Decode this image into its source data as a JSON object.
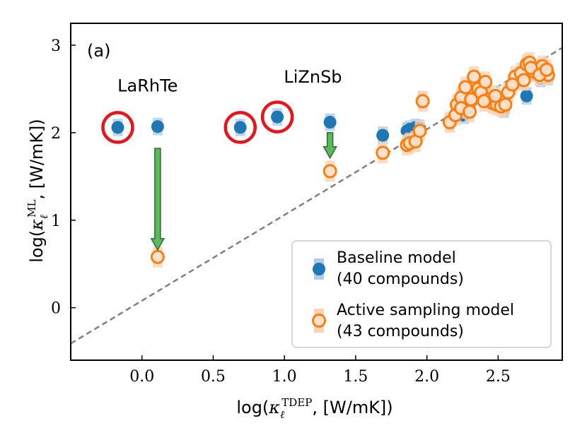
{
  "chart_data": {
    "type": "scatter",
    "panel_label": "(a)",
    "xlabel": {
      "prefix": "log(",
      "symbol": "κ",
      "sub": "ℓ",
      "sup": "TDEP",
      "suffix": ", [W/mK])"
    },
    "ylabel": {
      "prefix": "log(",
      "symbol": "κ",
      "sub": "ℓ",
      "sup": "ML",
      "suffix": ", [W/mK])"
    },
    "xlim": [
      -0.5,
      2.95
    ],
    "ylim": [
      -0.6,
      3.25
    ],
    "xticks": [
      0.0,
      0.5,
      1.0,
      1.5,
      2.0,
      2.5
    ],
    "xtick_labels": [
      "0.0",
      "0.5",
      "1.0",
      "1.5",
      "2.0",
      "2.5"
    ],
    "yticks": [
      0,
      1,
      2,
      3
    ],
    "ytick_labels": [
      "0",
      "1",
      "2",
      "3"
    ],
    "reference_line": {
      "style": "dashed",
      "color": "#808080",
      "from": [
        -0.5,
        -0.41
      ],
      "to": [
        2.95,
        2.97
      ]
    },
    "colors": {
      "baseline": "#1f77b4",
      "baseline_err": "#aecde6",
      "active": "#ff7f0e",
      "active_fill": "#fde2cf",
      "active_err": "#fbd3b5",
      "circle": "#e8141c",
      "arrow_fill": "#5cb85c",
      "arrow_edge": "#2d6a2d"
    },
    "series": [
      {
        "name": "Baseline model\n(40 compounds)",
        "legend_lines": [
          "Baseline model",
          "(40 compounds)"
        ],
        "style": "filled",
        "err": 0.1,
        "points": [
          [
            -0.17,
            2.06
          ],
          [
            0.11,
            2.07
          ],
          [
            0.69,
            2.06
          ],
          [
            0.95,
            2.18
          ],
          [
            1.32,
            2.12
          ],
          [
            1.69,
            1.97
          ],
          [
            1.86,
            2.02
          ],
          [
            1.88,
            2.04
          ],
          [
            1.92,
            2.06
          ],
          [
            1.95,
            2.05
          ],
          [
            1.97,
            2.37
          ],
          [
            2.16,
            2.12
          ],
          [
            2.21,
            2.3
          ],
          [
            2.24,
            2.4
          ],
          [
            2.27,
            2.5
          ],
          [
            2.29,
            2.28
          ],
          [
            2.31,
            2.35
          ],
          [
            2.33,
            2.62
          ],
          [
            2.37,
            2.48
          ],
          [
            2.41,
            2.55
          ],
          [
            2.44,
            2.36
          ],
          [
            2.47,
            2.33
          ],
          [
            2.5,
            2.3
          ],
          [
            2.54,
            2.27
          ],
          [
            2.57,
            2.45
          ],
          [
            2.62,
            2.62
          ],
          [
            2.67,
            2.66
          ],
          [
            2.7,
            2.42
          ],
          [
            2.72,
            2.78
          ],
          [
            2.75,
            2.72
          ],
          [
            2.78,
            2.7
          ],
          [
            2.81,
            2.75
          ],
          [
            2.83,
            2.68
          ],
          [
            2.85,
            2.64
          ],
          [
            2.26,
            2.2
          ],
          [
            2.36,
            2.55
          ],
          [
            2.52,
            2.32
          ],
          [
            2.65,
            2.6
          ],
          [
            2.74,
            2.68
          ],
          [
            2.8,
            2.62
          ]
        ]
      },
      {
        "name": "Active sampling model\n(43 compounds)",
        "legend_lines": [
          "Active sampling model",
          "(43 compounds)"
        ],
        "style": "hollow",
        "err": 0.12,
        "points": [
          [
            0.11,
            0.58
          ],
          [
            1.32,
            1.56
          ],
          [
            1.69,
            1.77
          ],
          [
            1.86,
            1.86
          ],
          [
            1.88,
            1.88
          ],
          [
            1.92,
            1.9
          ],
          [
            1.95,
            2.02
          ],
          [
            1.97,
            2.36
          ],
          [
            2.16,
            2.12
          ],
          [
            2.2,
            2.2
          ],
          [
            2.21,
            2.32
          ],
          [
            2.24,
            2.4
          ],
          [
            2.27,
            2.52
          ],
          [
            2.29,
            2.3
          ],
          [
            2.31,
            2.38
          ],
          [
            2.33,
            2.64
          ],
          [
            2.36,
            2.5
          ],
          [
            2.38,
            2.46
          ],
          [
            2.41,
            2.58
          ],
          [
            2.43,
            2.38
          ],
          [
            2.46,
            2.34
          ],
          [
            2.49,
            2.32
          ],
          [
            2.52,
            2.3
          ],
          [
            2.55,
            2.32
          ],
          [
            2.57,
            2.46
          ],
          [
            2.62,
            2.64
          ],
          [
            2.66,
            2.68
          ],
          [
            2.7,
            2.78
          ],
          [
            2.72,
            2.8
          ],
          [
            2.75,
            2.7
          ],
          [
            2.78,
            2.72
          ],
          [
            2.81,
            2.76
          ],
          [
            2.83,
            2.7
          ],
          [
            2.85,
            2.66
          ],
          [
            2.24,
            2.28
          ],
          [
            2.3,
            2.24
          ],
          [
            2.4,
            2.36
          ],
          [
            2.48,
            2.42
          ],
          [
            2.6,
            2.55
          ],
          [
            2.68,
            2.6
          ],
          [
            2.73,
            2.74
          ],
          [
            2.79,
            2.66
          ],
          [
            2.84,
            2.72
          ]
        ]
      }
    ],
    "circled_points": [
      [
        -0.17,
        2.06
      ],
      [
        0.69,
        2.06
      ],
      [
        0.95,
        2.18
      ]
    ],
    "arrows": [
      {
        "from": [
          0.11,
          1.82
        ],
        "to": [
          0.11,
          0.66
        ]
      },
      {
        "from": [
          1.32,
          2.0
        ],
        "to": [
          1.32,
          1.71
        ]
      }
    ],
    "annotations": [
      {
        "text": "LaRhTe",
        "x": 0.04,
        "y": 2.47
      },
      {
        "text": "LiZnSb",
        "x": 1.2,
        "y": 2.57
      }
    ],
    "legend_position": "lower-right"
  }
}
